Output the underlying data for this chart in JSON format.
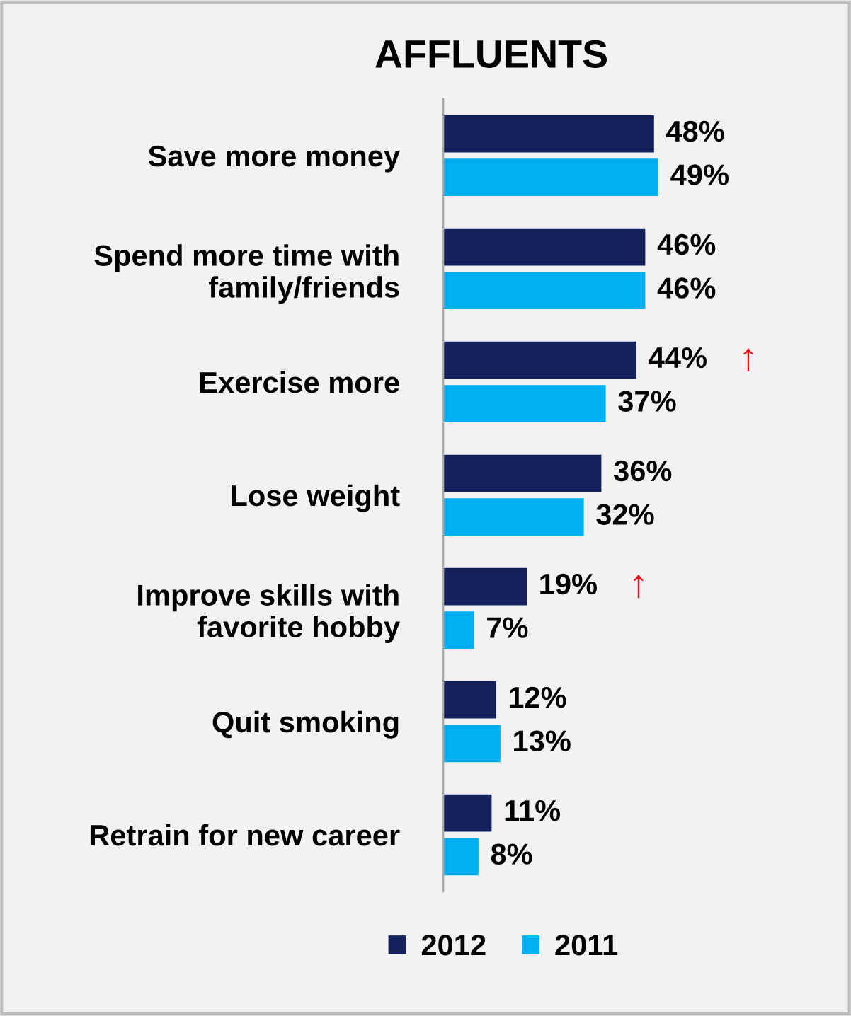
{
  "chart_data": {
    "type": "bar",
    "orientation": "horizontal",
    "title": "AFFLUENTS",
    "categories": [
      "Save more money",
      "Spend more time with\nfamily/friends",
      "Exercise more",
      "Lose weight",
      "Improve skills with\nfavorite hobby",
      "Quit smoking",
      "Retrain for new career"
    ],
    "series": [
      {
        "name": "2012",
        "color": "#14215a",
        "values": [
          48,
          46,
          44,
          36,
          19,
          12,
          11
        ],
        "value_labels": [
          "48%",
          "46%",
          "44%",
          "36%",
          "19%",
          "12%",
          "11%"
        ]
      },
      {
        "name": "2011",
        "color": "#00b0f0",
        "values": [
          49,
          46,
          37,
          32,
          7,
          13,
          8
        ],
        "value_labels": [
          "49%",
          "46%",
          "37%",
          "32%",
          "7%",
          "13%",
          "8%"
        ]
      }
    ],
    "annotations": [
      {
        "text": "↑",
        "x": 44,
        "y": "Exercise more"
      },
      {
        "text": "↑",
        "x": 19,
        "y": "Improve skills with\nfavorite hobby"
      }
    ],
    "legend": "bottom",
    "grid": false
  }
}
